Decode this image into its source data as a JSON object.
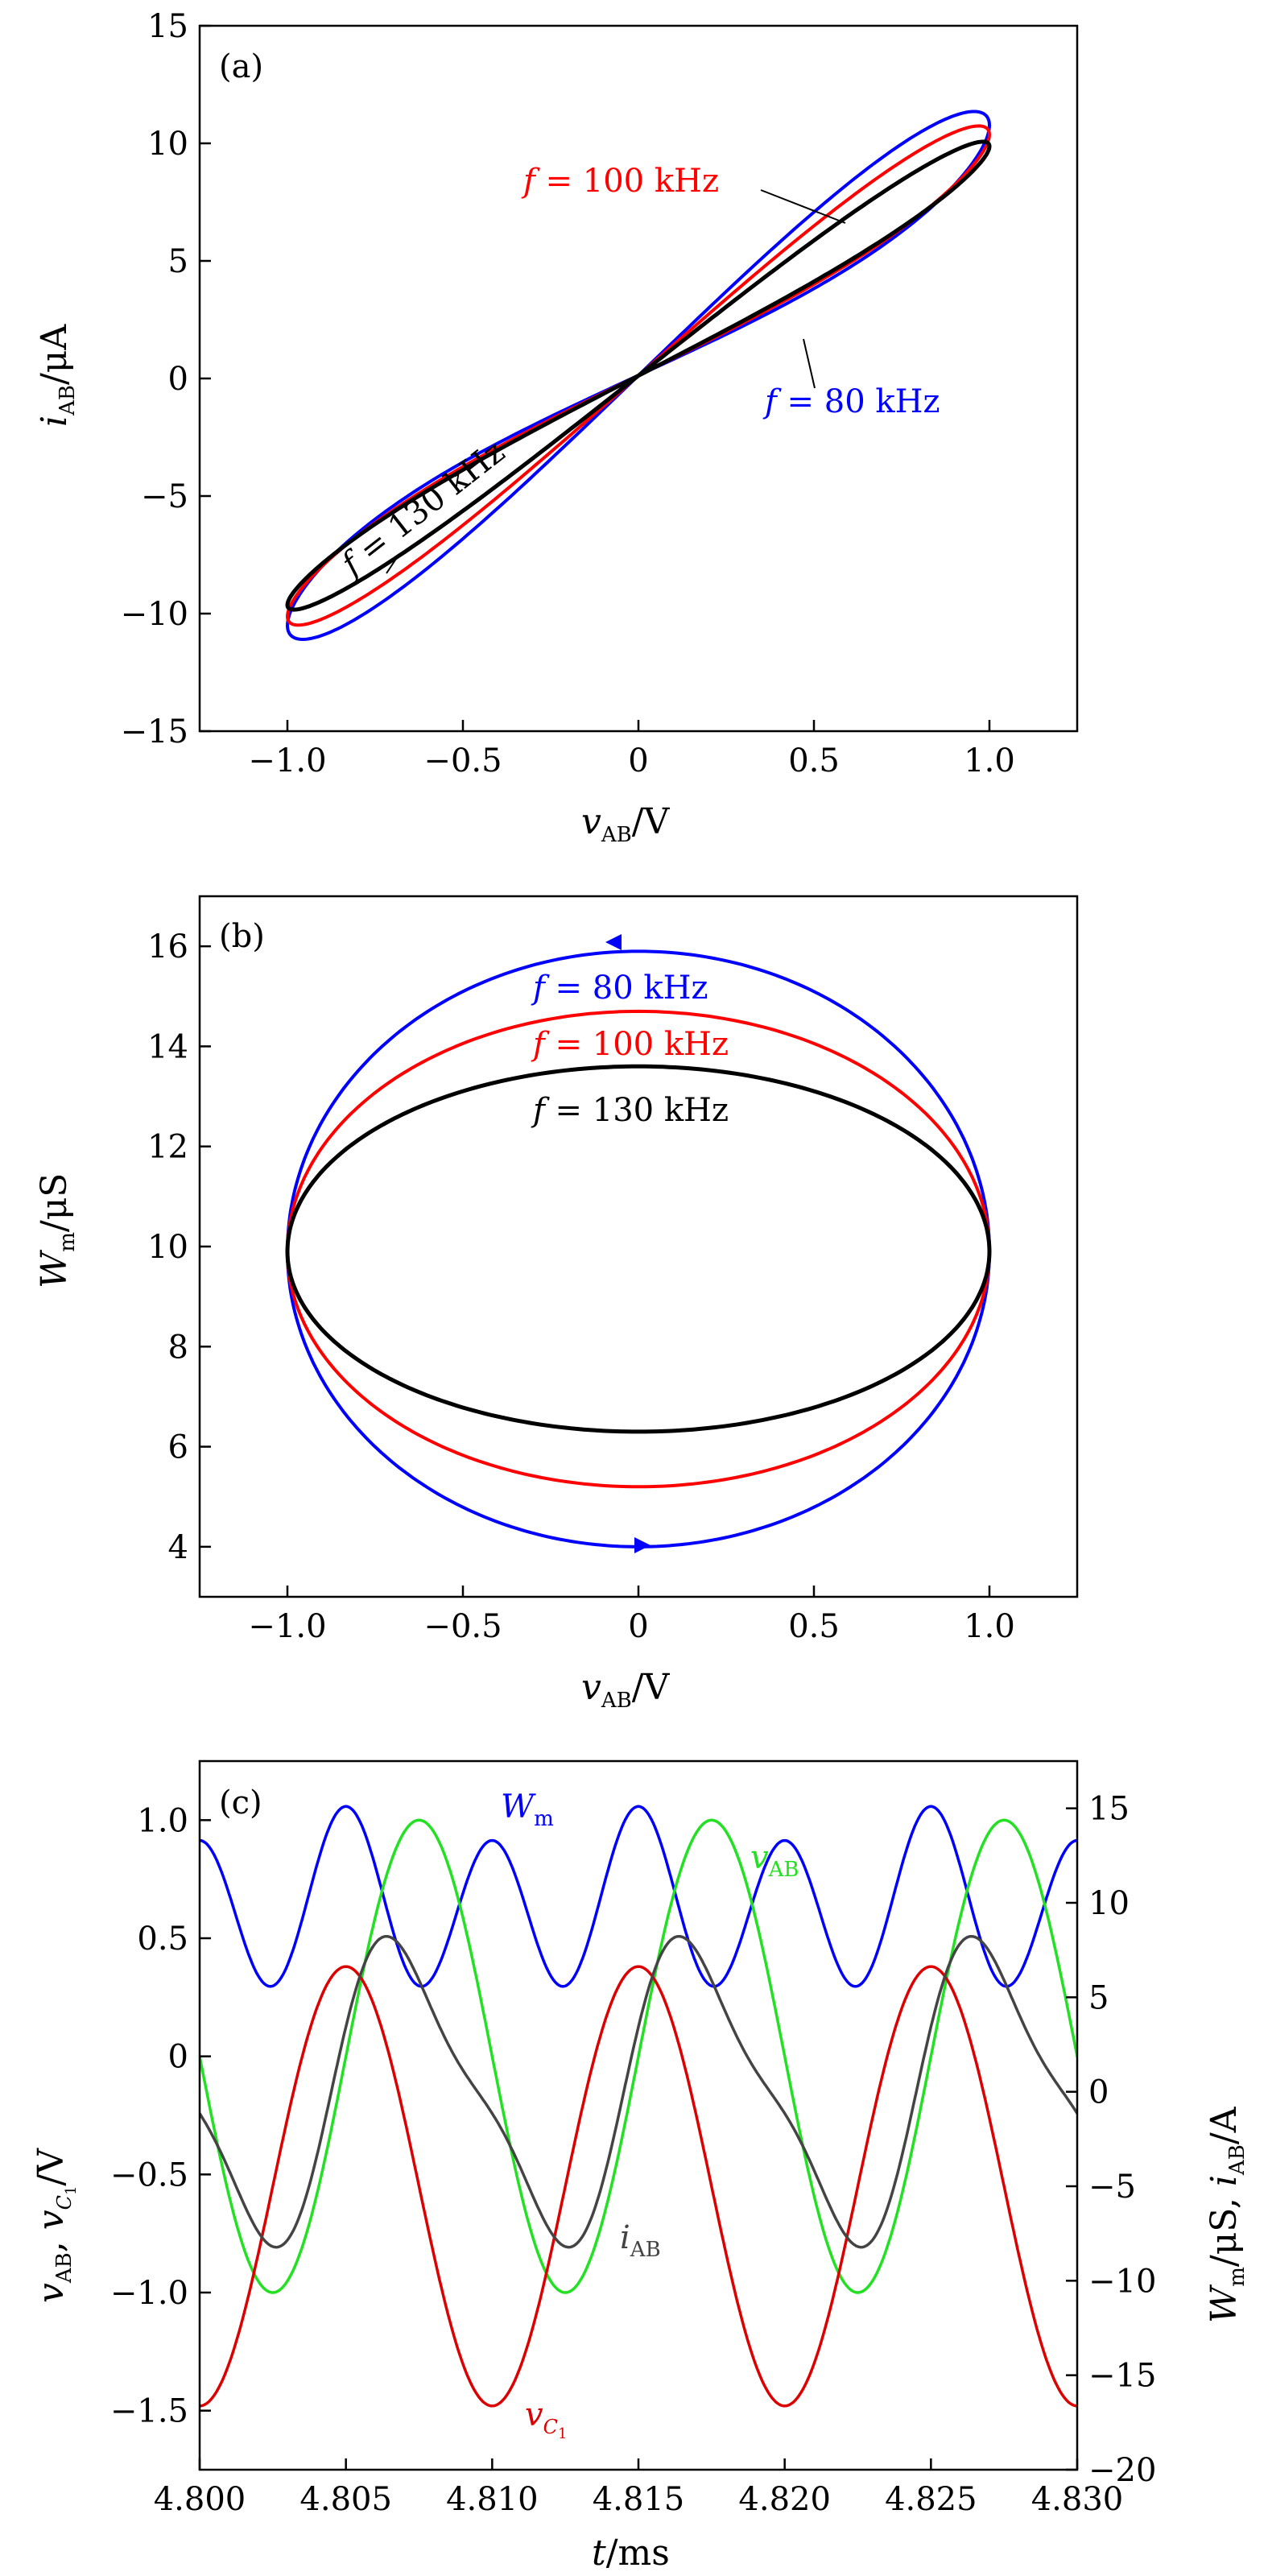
{
  "chart_data": [
    {
      "panel": "(a)",
      "type": "line",
      "xlabel": "v_AB/V",
      "ylabel": "i_AB/μA",
      "xlim": [
        -1.25,
        1.25
      ],
      "ylim": [
        -15,
        15
      ],
      "xticks": [
        "−1.0",
        "−0.5",
        "0",
        "0.5",
        "1.0"
      ],
      "xtick_values": [
        -1.0,
        -0.5,
        0,
        0.5,
        1.0
      ],
      "yticks": [
        "−15",
        "−10",
        "−5",
        "0",
        "5",
        "10",
        "15"
      ],
      "ytick_values": [
        -15,
        -10,
        -5,
        0,
        5,
        10,
        15
      ],
      "series": [
        {
          "name": "f = 80 kHz",
          "color": "#0000ff",
          "peak_current": 10.8,
          "amplitude_v": 1.0,
          "loop_width": 0.29,
          "label_text": "f = 80 kHz"
        },
        {
          "name": "f = 100 kHz",
          "color": "#ff0000",
          "peak_current": 10.4,
          "amplitude_v": 1.0,
          "loop_width": 0.23,
          "label_text": "f = 100 kHz"
        },
        {
          "name": "f = 130 kHz",
          "color": "#000000",
          "peak_current": 9.9,
          "amplitude_v": 1.0,
          "loop_width": 0.17,
          "label_text": "f = 130 kHz"
        }
      ]
    },
    {
      "panel": "(b)",
      "type": "line",
      "xlabel": "v_AB/V",
      "ylabel": "W_m/μS",
      "xlim": [
        -1.25,
        1.25
      ],
      "ylim": [
        3,
        17
      ],
      "xticks": [
        "−1.0",
        "−0.5",
        "0",
        "0.5",
        "1.0"
      ],
      "xtick_values": [
        -1.0,
        -0.5,
        0,
        0.5,
        1.0
      ],
      "yticks": [
        "4",
        "6",
        "8",
        "10",
        "12",
        "14",
        "16"
      ],
      "ytick_values": [
        4,
        6,
        8,
        10,
        12,
        14,
        16
      ],
      "center": 9.9,
      "series": [
        {
          "name": "f = 80 kHz",
          "color": "#0000ff",
          "ymax": 15.9,
          "ymin": 4.0,
          "label_text": "f = 80 kHz"
        },
        {
          "name": "f = 100 kHz",
          "color": "#ff0000",
          "ymax": 14.7,
          "ymin": 5.2,
          "label_text": "f = 100 kHz"
        },
        {
          "name": "f = 130 kHz",
          "color": "#000000",
          "ymax": 13.6,
          "ymin": 6.3,
          "label_text": "f = 130 kHz"
        }
      ]
    },
    {
      "panel": "(c)",
      "type": "line",
      "xlabel": "t/ms",
      "ylabel_left": "v_AB, v_C1/V",
      "ylabel_right": "W_m/μS, i_AB/A",
      "xlim": [
        4.8,
        4.83
      ],
      "ylim_left": [
        -1.75,
        1.25
      ],
      "ylim_right": [
        -20,
        17.5
      ],
      "xticks": [
        "4.800",
        "4.805",
        "4.810",
        "4.815",
        "4.820",
        "4.825",
        "4.830"
      ],
      "xtick_values": [
        4.8,
        4.805,
        4.81,
        4.815,
        4.82,
        4.825,
        4.83
      ],
      "yticks_left": [
        "−1.5",
        "−1.0",
        "−0.5",
        "0",
        "0.5",
        "1.0"
      ],
      "ytick_left_values": [
        -1.5,
        -1.0,
        -0.5,
        0,
        0.5,
        1.0
      ],
      "yticks_right": [
        "−20",
        "−15",
        "−10",
        "−5",
        "0",
        "5",
        "10",
        "15"
      ],
      "ytick_right_values": [
        -20,
        -15,
        -10,
        -5,
        0,
        5,
        10,
        15
      ],
      "period_ms": 0.01,
      "series": [
        {
          "name": "W_m",
          "axis": "right",
          "color": "#0000ff",
          "mean": 9.9,
          "amp1": 4.3,
          "amp2": 0.9,
          "peak_t": 4.805
        },
        {
          "name": "v_AB",
          "axis": "left",
          "color": "#22e022",
          "mean": 0.0,
          "amp1": 1.0,
          "peak_t": 4.8075
        },
        {
          "name": "v_C1",
          "axis": "left",
          "color": "#dd0000",
          "mean": -0.55,
          "amp1": 0.93,
          "peak_t": 4.805
        },
        {
          "name": "i_AB",
          "axis": "right",
          "color": "#444444",
          "mean": 0.0,
          "amp1": 9.5,
          "amp2": 2.5,
          "peak_t": 4.807
        }
      ]
    }
  ]
}
